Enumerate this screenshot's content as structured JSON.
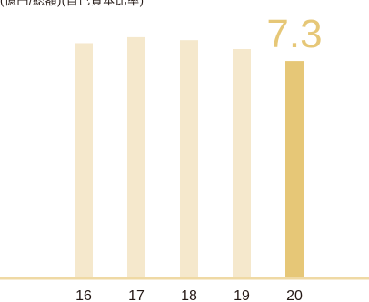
{
  "header": {
    "caption": "(億円/総額)(自己資本比率)"
  },
  "colors": {
    "past_bar": "#f5e8cc",
    "highlight_bar": "#e6c777",
    "value_label": "#e6c777",
    "baseline": "#efd9a4",
    "tick_text": "#231815"
  },
  "chart_data": {
    "type": "bar",
    "categories": [
      "16",
      "17",
      "18",
      "19",
      "20"
    ],
    "values": [
      7.9,
      8.1,
      8.0,
      7.7,
      7.3
    ],
    "highlight_index": 4,
    "highlight_label": "7.3",
    "ylim": [
      0,
      8.8
    ],
    "grid": false,
    "legend": "none"
  }
}
